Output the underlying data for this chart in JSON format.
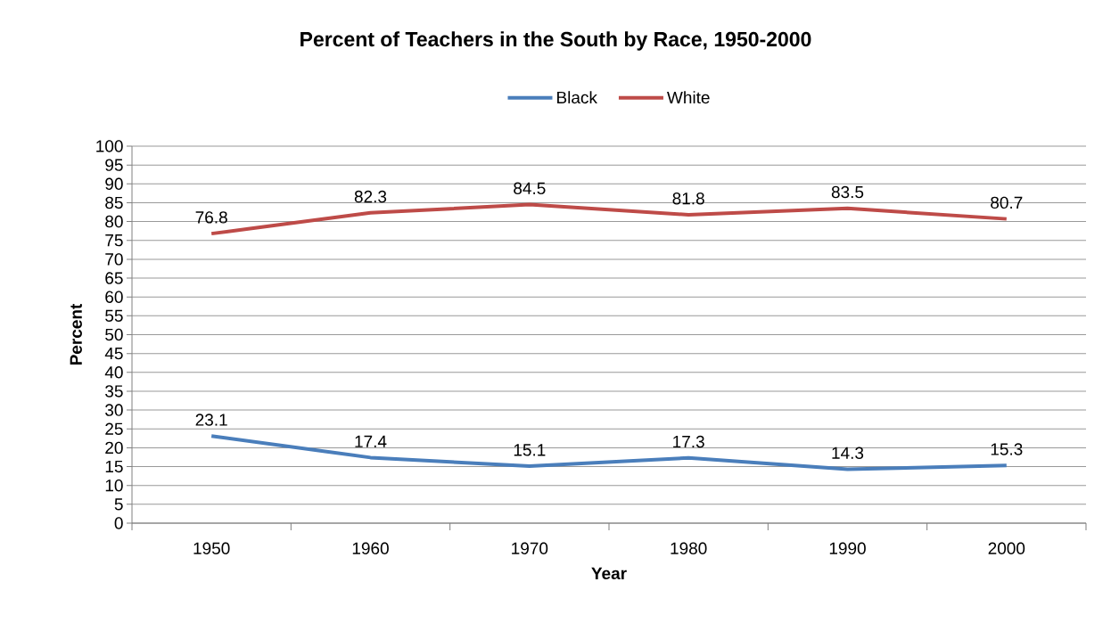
{
  "chart_data": {
    "type": "line",
    "title": "Percent of Teachers in the South by Race, 1950-2000",
    "xlabel": "Year",
    "ylabel": "Percent",
    "categories": [
      "1950",
      "1960",
      "1970",
      "1980",
      "1990",
      "2000"
    ],
    "series": [
      {
        "name": "Black",
        "color": "#4a7ebb",
        "values": [
          23.1,
          17.4,
          15.1,
          17.3,
          14.3,
          15.3
        ]
      },
      {
        "name": "White",
        "color": "#be4b48",
        "values": [
          76.8,
          82.3,
          84.5,
          81.8,
          83.5,
          80.7
        ]
      }
    ],
    "ylim": [
      0,
      100
    ],
    "yticks": [
      0,
      5,
      10,
      15,
      20,
      25,
      30,
      35,
      40,
      45,
      50,
      55,
      60,
      65,
      70,
      75,
      80,
      85,
      90,
      95,
      100
    ],
    "grid": "y",
    "legend": "top",
    "data_labels": true,
    "marker": "none",
    "line_style": "solid"
  }
}
